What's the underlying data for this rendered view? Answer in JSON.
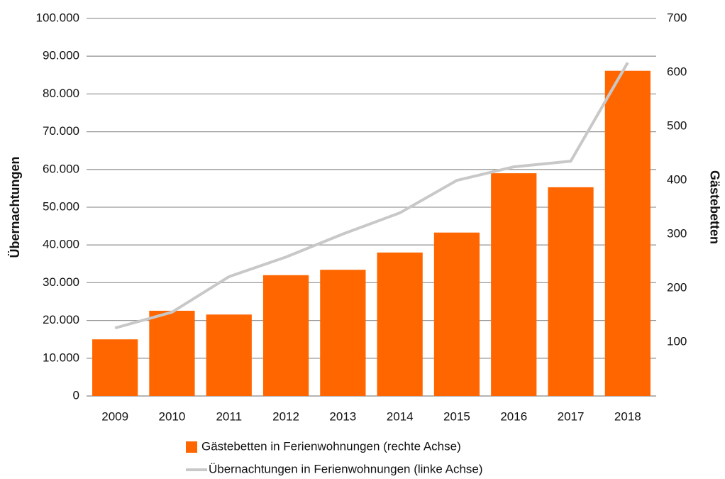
{
  "chart_data": {
    "type": "bar_line",
    "categories": [
      "2009",
      "2010",
      "2011",
      "2012",
      "2013",
      "2014",
      "2015",
      "2016",
      "2017",
      "2018"
    ],
    "ylabel": "Übernachtungen",
    "y2label": "Gästebetten",
    "ylim": [
      0,
      100000
    ],
    "yticks": [
      0,
      {
        "value": 10000,
        "label": "10.000"
      },
      {
        "value": 20000,
        "label": "20.000"
      },
      {
        "value": 30000,
        "label": "30.000"
      },
      {
        "value": 40000,
        "label": "40.000"
      },
      {
        "value": 50000,
        "label": "50.000"
      },
      {
        "value": 60000,
        "label": "60.000"
      },
      {
        "value": 70000,
        "label": "70.000"
      },
      {
        "value": 80000,
        "label": "80.000"
      },
      {
        "value": 90000,
        "label": "90.000"
      },
      {
        "value": 100000,
        "label": "100.000"
      }
    ],
    "y2lim": [
      0,
      700
    ],
    "y2ticks": [
      100,
      200,
      300,
      400,
      500,
      600,
      700
    ],
    "grid": true,
    "series": [
      {
        "name": "Gästebetten in Ferienwohnungen (rechte Achse)",
        "type": "bar",
        "axis": "y2",
        "color": "#ff6600",
        "values": [
          105,
          158,
          151,
          224,
          234,
          266,
          303,
          413,
          387,
          603
        ]
      },
      {
        "name": "Übernachtungen in Ferienwohnungen (linke Achse)",
        "type": "line",
        "axis": "y",
        "color": "#c8c8c8",
        "values": [
          18000,
          22200,
          31600,
          36800,
          42900,
          48500,
          57100,
          60700,
          62200,
          88300
        ]
      }
    ]
  }
}
